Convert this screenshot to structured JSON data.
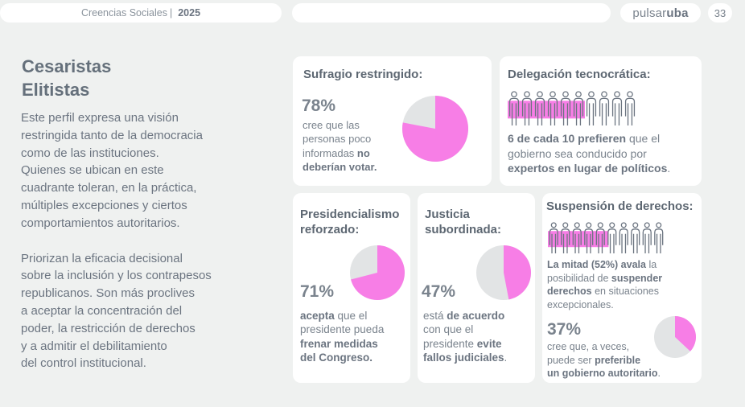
{
  "header": {
    "section": "Creencias Sociales",
    "separator": "|",
    "year": "2025",
    "logo_a": "pulsar",
    "logo_b": "uba",
    "page": "33"
  },
  "left": {
    "title_line1": "Cesaristas",
    "title_line2": "Elitistas",
    "paragraph1": [
      "Este perfil expresa una visión",
      "restringida tanto de la democracia",
      "como de las instituciones.",
      "Quienes se ubican en este",
      "cuadrante toleran, en la práctica,",
      "múltiples excepciones y ciertos",
      "comportamientos autoritarios."
    ],
    "paragraph2": [
      "Priorizan la eficacia decisional",
      "sobre la inclusión y los contrapesos",
      "republicanos. Son más proclives",
      "a aceptar la concentración del",
      "poder, la restricción de derechos",
      "y a admitir el debilitamiento",
      "del control institucional."
    ]
  },
  "colors": {
    "accent": "#f77ee6",
    "grey": "#e2e4e5",
    "highlight": "#f77ee6"
  },
  "cards": {
    "sufragio": {
      "title": "Sufragio restringido:",
      "pct": "78%",
      "value": 78,
      "text": [
        "cree que las",
        "personas poco",
        "informadas ",
        "no",
        "deberían votar."
      ]
    },
    "delegacion": {
      "title": "Delegación tecnocrática:",
      "people_total": 10,
      "people_highlighted": 6,
      "t1": "6 de cada 10 prefieren",
      "t2": " que el",
      "t3": "gobierno sea conducido por",
      "t4": "expertos en lugar de políticos",
      "t5": "."
    },
    "presidencialismo": {
      "title1": "Presidencialismo",
      "title2": "reforzado:",
      "pct": "71%",
      "value": 71,
      "t1": "acepta",
      "t2": " que el",
      "t3": "presidente pueda",
      "t4": "frenar medidas",
      "t5": "del Congreso."
    },
    "justicia": {
      "title1": "Justicia",
      "title2": "subordinada:",
      "pct": "47%",
      "value": 47,
      "t1": "está ",
      "t2": "de acuerdo",
      "t3": "con que el",
      "t4": "presidente ",
      "t5": "evite",
      "t6": "fallos judiciales",
      "t7": "."
    },
    "suspension": {
      "title": "Suspensión de derechos:",
      "people_total": 10,
      "people_highlighted": 5.2,
      "t1": "La mitad (52%) avala",
      "t2": " la",
      "t3": "posibilidad de ",
      "t4": "suspender",
      "t5": "derechos",
      "t6": " en situaciones",
      "t7": "excepcionales.",
      "pct": "37%",
      "value": 37,
      "u1": "cree que, a veces,",
      "u2": "puede ser ",
      "u3": "preferible",
      "u4": "un gobierno autoritario",
      "u5": "."
    }
  }
}
